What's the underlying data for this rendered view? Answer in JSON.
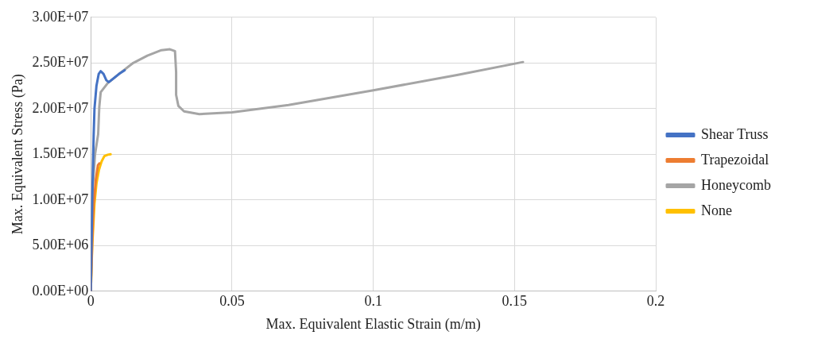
{
  "chart_data": {
    "type": "line",
    "xlabel": "Max. Equivalent Elastic Strain (m/m)",
    "ylabel": "Max. Equivalent Stress (Pa)",
    "xlim": [
      0,
      0.2
    ],
    "xticks": [
      0,
      0.05,
      0.1,
      0.15,
      0.2
    ],
    "ylim": [
      0,
      30000000
    ],
    "yticks": [
      {
        "value": 0,
        "label": "0.00E+00"
      },
      {
        "value": 5000000,
        "label": "5.00E+06"
      },
      {
        "value": 10000000,
        "label": "1.00E+07"
      },
      {
        "value": 15000000,
        "label": "1.50E+07"
      },
      {
        "value": 20000000,
        "label": "2.00E+07"
      },
      {
        "value": 25000000,
        "label": "2.50E+07"
      },
      {
        "value": 30000000,
        "label": "3.00E+07"
      }
    ],
    "grid": true,
    "legend": "right",
    "marker": "none",
    "line_style": "solid",
    "series": [
      {
        "name": "Shear Truss",
        "color": "#4472c4",
        "x": [
          0,
          0.0005,
          0.001,
          0.0013,
          0.002,
          0.0028,
          0.0035,
          0.0045,
          0.0055,
          0.0064,
          0.008,
          0.01,
          0.012
        ],
        "values": [
          0,
          10000000,
          17000000,
          20000000,
          22500000,
          23800000,
          24100000,
          23800000,
          23100000,
          22900000,
          23300000,
          23800000,
          24200000
        ]
      },
      {
        "name": "Trapezoidal",
        "color": "#ed7d31",
        "x": [
          0,
          0.0005,
          0.001,
          0.0018,
          0.0025,
          0.003
        ],
        "values": [
          0,
          5500000,
          9500000,
          12300000,
          13800000,
          14000000
        ]
      },
      {
        "name": "Honeycomb",
        "color": "#a5a5a5",
        "x": [
          0,
          0.0006,
          0.0015,
          0.0026,
          0.003,
          0.0035,
          0.006,
          0.01,
          0.015,
          0.02,
          0.025,
          0.028,
          0.0298,
          0.0302,
          0.0302,
          0.031,
          0.033,
          0.0384,
          0.05,
          0.07,
          0.1,
          0.13,
          0.153
        ],
        "values": [
          0,
          11000000,
          15000000,
          17200000,
          20200000,
          21800000,
          22800000,
          23800000,
          25000000,
          25800000,
          26400000,
          26500000,
          26300000,
          24000000,
          21500000,
          20300000,
          19700000,
          19400000,
          19600000,
          20400000,
          22000000,
          23700000,
          25100000
        ]
      },
      {
        "name": "None",
        "color": "#ffc000",
        "x": [
          0,
          0.0005,
          0.0013,
          0.002,
          0.0029,
          0.0038,
          0.0048,
          0.006,
          0.007
        ],
        "values": [
          0,
          5000000,
          9600000,
          11800000,
          13300000,
          14200000,
          14800000,
          14950000,
          15000000
        ]
      }
    ]
  }
}
